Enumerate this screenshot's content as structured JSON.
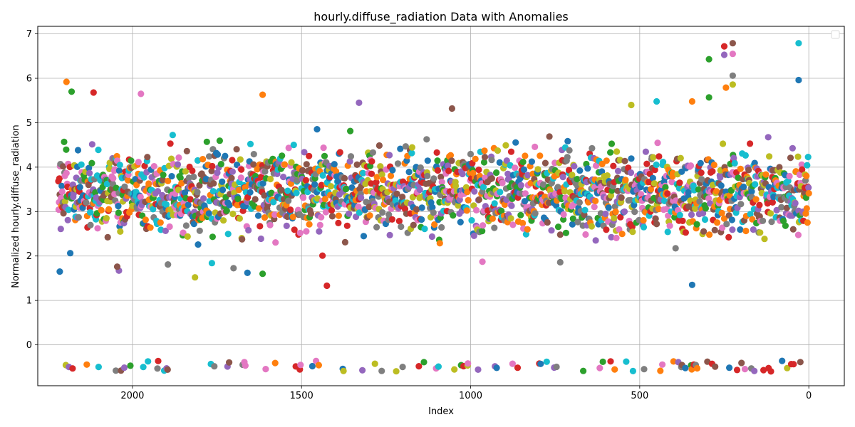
{
  "chart_data": {
    "type": "scatter",
    "title": "hourly.diffuse_radiation Data with Anomalies",
    "xlabel": "Index",
    "ylabel": "Normalized hourly.diffuse_radiation",
    "x_inverted": true,
    "xlim": [
      2280,
      -105
    ],
    "ylim": [
      -0.92,
      7.17
    ],
    "x_ticks": [
      2000,
      1500,
      1000,
      500,
      0
    ],
    "y_ticks": [
      0,
      1,
      2,
      3,
      4,
      5,
      6,
      7
    ],
    "grid": true,
    "legend": {
      "position": "top-right",
      "entries": []
    },
    "n_points": 2220,
    "normal_value_range": [
      1.3,
      6.8
    ],
    "anomaly_level_range": [
      -0.6,
      -0.36
    ],
    "color_cycle": [
      "#1f77b4",
      "#ff7f0e",
      "#2ca02c",
      "#d62728",
      "#9467bd",
      "#8c564b",
      "#e377c2",
      "#7f7f7f",
      "#bcbd22",
      "#17becf"
    ],
    "outlier_points": [
      {
        "x": 2215,
        "y": 1.65
      },
      {
        "x": 2195,
        "y": 5.92
      },
      {
        "x": 2180,
        "y": 5.7
      },
      {
        "x": 2115,
        "y": 5.68
      },
      {
        "x": 2040,
        "y": 1.67
      },
      {
        "x": 2045,
        "y": 1.76
      },
      {
        "x": 1975,
        "y": 5.65
      },
      {
        "x": 1895,
        "y": 1.81
      },
      {
        "x": 1815,
        "y": 1.52
      },
      {
        "x": 1765,
        "y": 1.84
      },
      {
        "x": 1660,
        "y": 1.62
      },
      {
        "x": 1615,
        "y": 5.63
      },
      {
        "x": 1615,
        "y": 1.6
      },
      {
        "x": 1425,
        "y": 1.33
      },
      {
        "x": 1330,
        "y": 5.45
      },
      {
        "x": 1055,
        "y": 5.32
      },
      {
        "x": 965,
        "y": 1.87
      },
      {
        "x": 735,
        "y": 1.86
      },
      {
        "x": 525,
        "y": 5.4
      },
      {
        "x": 450,
        "y": 5.48
      },
      {
        "x": 345,
        "y": 1.35
      },
      {
        "x": 345,
        "y": 5.48
      },
      {
        "x": 295,
        "y": 6.43
      },
      {
        "x": 250,
        "y": 6.72
      },
      {
        "x": 250,
        "y": 6.53
      },
      {
        "x": 225,
        "y": 6.79
      },
      {
        "x": 225,
        "y": 6.55
      },
      {
        "x": 225,
        "y": 6.06
      },
      {
        "x": 225,
        "y": 5.86
      },
      {
        "x": 30,
        "y": 6.79
      },
      {
        "x": 30,
        "y": 5.96
      },
      {
        "x": 245,
        "y": 5.79
      },
      {
        "x": 295,
        "y": 5.57
      }
    ]
  }
}
